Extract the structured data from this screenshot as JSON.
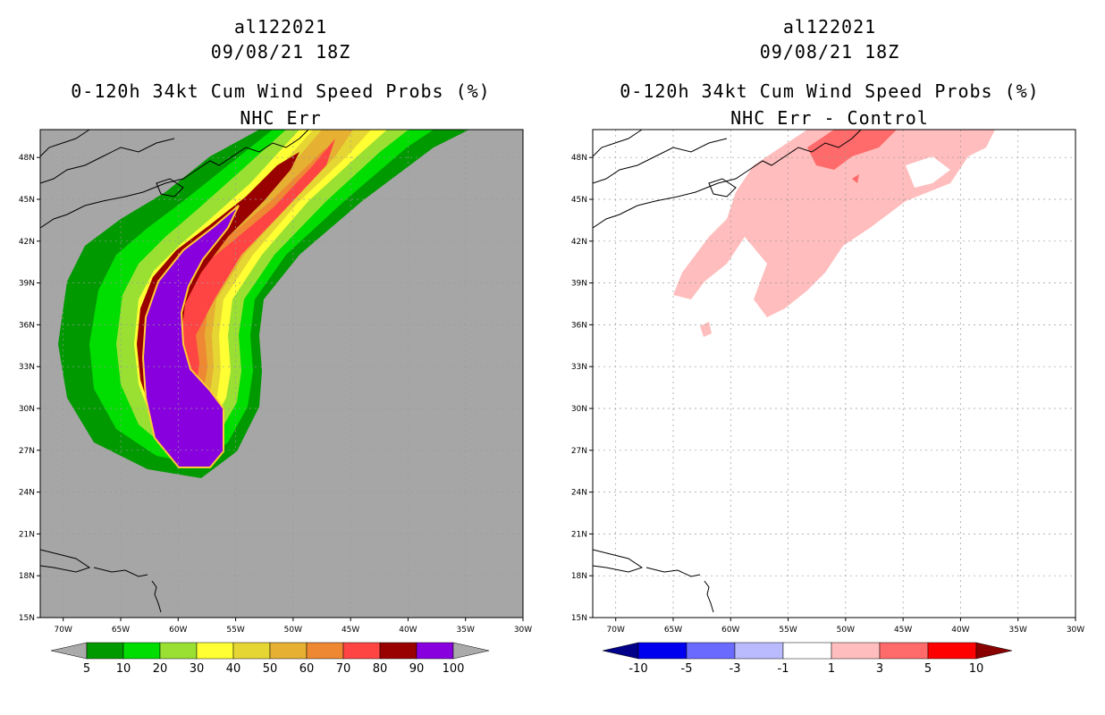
{
  "left": {
    "title_line1": "al122021",
    "title_line2": "09/08/21 18Z",
    "title_line3": "0-120h 34kt Cum Wind Speed Probs (%)",
    "title_line4": "NHC Err",
    "background_color": "#a6a6a6",
    "colorbar": {
      "colors": [
        "#009900",
        "#00dd00",
        "#99e033",
        "#ffff33",
        "#e6d633",
        "#e6b033",
        "#ee8833",
        "#ff4444",
        "#990000",
        "#8800dd"
      ],
      "labels": [
        "5",
        "10",
        "20",
        "30",
        "40",
        "50",
        "60",
        "70",
        "80",
        "90",
        "100"
      ],
      "under_color": "#aaaaaa",
      "over_color": "#aaaaaa"
    }
  },
  "right": {
    "title_line1": "al122021",
    "title_line2": "09/08/21 18Z",
    "title_line3": "0-120h 34kt Cum Wind Speed Probs (%)",
    "title_line4": "NHC Err - Control",
    "background_color": "#ffffff",
    "colorbar": {
      "colors": [
        "#0000ee",
        "#6a6aff",
        "#babaff",
        "#ffffff",
        "#ffbdbd",
        "#ff6a6a",
        "#ff0000"
      ],
      "labels": [
        "-10",
        "-5",
        "-3",
        "-1",
        "1",
        "3",
        "5",
        "10"
      ],
      "under_color": "#000088",
      "over_color": "#880000"
    }
  },
  "chart_data": [
    {
      "type": "heatmap",
      "title": "0-120h 34kt Cum Wind Speed Probs (%) NHC Err",
      "xlim": [
        -72,
        -30
      ],
      "ylim": [
        15,
        50
      ],
      "x_ticks": [
        "70W",
        "65W",
        "60W",
        "55W",
        "50W",
        "45W",
        "40W",
        "35W",
        "30W"
      ],
      "y_ticks": [
        "15N",
        "18N",
        "21N",
        "24N",
        "27N",
        "30N",
        "33N",
        "36N",
        "39N",
        "42N",
        "45N",
        "48N"
      ],
      "levels": [
        5,
        10,
        20,
        30,
        40,
        50,
        60,
        70,
        80,
        90,
        100
      ],
      "storm_track_approx": [
        [
          -59.5,
          26
        ],
        [
          -57.5,
          26
        ],
        [
          -57.5,
          29.5
        ],
        [
          -59,
          34
        ],
        [
          -58.5,
          37
        ],
        [
          -55.5,
          41
        ],
        [
          -52,
          45
        ],
        [
          -48,
          49
        ]
      ]
    },
    {
      "type": "heatmap",
      "title": "0-120h 34kt Cum Wind Speed Probs (%) NHC Err - Control",
      "xlim": [
        -72,
        -30
      ],
      "ylim": [
        15,
        50
      ],
      "x_ticks": [
        "70W",
        "65W",
        "60W",
        "55W",
        "50W",
        "45W",
        "40W",
        "35W",
        "30W"
      ],
      "y_ticks": [
        "15N",
        "18N",
        "21N",
        "24N",
        "27N",
        "30N",
        "33N",
        "36N",
        "39N",
        "42N",
        "45N",
        "48N"
      ],
      "levels": [
        -10,
        -5,
        -3,
        -1,
        1,
        3,
        5,
        10
      ],
      "note": "positive differences (1-5) along the northern track"
    }
  ]
}
